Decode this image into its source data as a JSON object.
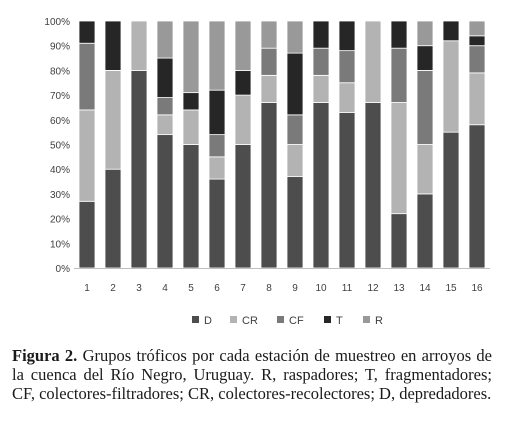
{
  "chart_data": {
    "type": "bar",
    "stacked": "percent",
    "categories": [
      "1",
      "2",
      "3",
      "4",
      "5",
      "6",
      "7",
      "8",
      "9",
      "10",
      "11",
      "12",
      "13",
      "14",
      "15",
      "16"
    ],
    "series": [
      {
        "name": "D",
        "color": "#4d4d4d",
        "values": [
          27,
          40,
          80,
          54,
          50,
          36,
          50,
          67,
          37,
          67,
          63,
          67,
          22,
          30,
          55,
          58
        ]
      },
      {
        "name": "CR",
        "color": "#b3b3b3",
        "values": [
          37,
          40,
          20,
          8,
          14,
          9,
          20,
          11,
          13,
          11,
          12,
          33,
          45,
          20,
          37,
          21
        ]
      },
      {
        "name": "CF",
        "color": "#7a7a7a",
        "values": [
          27,
          0,
          0,
          7,
          0,
          9,
          0,
          11,
          12,
          11,
          13,
          0,
          22,
          30,
          0,
          11
        ]
      },
      {
        "name": "T",
        "color": "#262626",
        "values": [
          9,
          20,
          0,
          16,
          7,
          18,
          10,
          0,
          25,
          11,
          12,
          0,
          11,
          10,
          8,
          4
        ]
      },
      {
        "name": "R",
        "color": "#999999",
        "values": [
          0,
          0,
          0,
          15,
          29,
          28,
          20,
          11,
          13,
          0,
          0,
          0,
          0,
          10,
          0,
          6
        ]
      }
    ],
    "ylim": [
      0,
      100
    ],
    "yticks": [
      "0%",
      "10%",
      "20%",
      "30%",
      "40%",
      "50%",
      "60%",
      "70%",
      "80%",
      "90%",
      "100%"
    ],
    "grid": false,
    "legend_position": "bottom"
  },
  "caption": {
    "label": "Figura 2.",
    "text": "Grupos tróficos por cada estación de muestreo en arroyos de la cuenca del Río Negro, Uruguay. R, raspadores; T, fragmentadores; CF, colectores-filtradores; CR, colectores-recolectores; D, depredadores."
  }
}
